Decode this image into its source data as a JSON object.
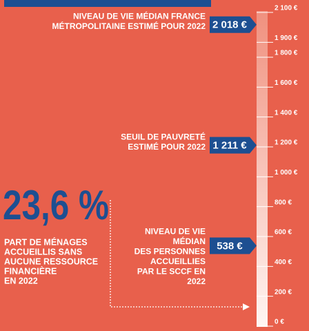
{
  "chart_data": {
    "type": "scale",
    "ylim": [
      0,
      2100
    ],
    "yticks": [
      {
        "value": 0,
        "label": "0 €"
      },
      {
        "value": 200,
        "label": "200 €"
      },
      {
        "value": 400,
        "label": "400 €"
      },
      {
        "value": 600,
        "label": "600 €"
      },
      {
        "value": 800,
        "label": "800 €"
      },
      {
        "value": 1000,
        "label": "1 000 €"
      },
      {
        "value": 1200,
        "label": "1 200 €"
      },
      {
        "value": 1400,
        "label": "1 400 €"
      },
      {
        "value": 1600,
        "label": "1 600 €"
      },
      {
        "value": 1800,
        "label": "1 800 €"
      },
      {
        "value": 1900,
        "label": "1 900 €"
      },
      {
        "value": 2100,
        "label": "2 100 €"
      }
    ],
    "values": [
      2018,
      1211,
      538
    ],
    "value_labels": [
      "2 018 €",
      "1 211 €",
      "538 €"
    ],
    "color": "#1d4f91",
    "annotations": [
      [
        "NIVEAU DE VIE MÉDIAN FRANCE",
        "MÉTROPOLITAINE ESTIMÉ POUR 2022"
      ],
      [
        "SEUIL DE PAUVRETÉ",
        "ESTIMÉ POUR 2022"
      ],
      [
        "NIVEAU DE VIE",
        "MÉDIAN",
        "DES PERSONNES",
        "ACCUEILLIES",
        "PAR LE SCCF EN",
        "2022"
      ]
    ],
    "highlight": "23,6 %",
    "highlight_caption": [
      "PART DE MÉNAGES",
      "ACCUEILLIS SANS",
      "AUCUNE RESSOURCE",
      "FINANCIÈRE",
      "EN 2022"
    ]
  }
}
